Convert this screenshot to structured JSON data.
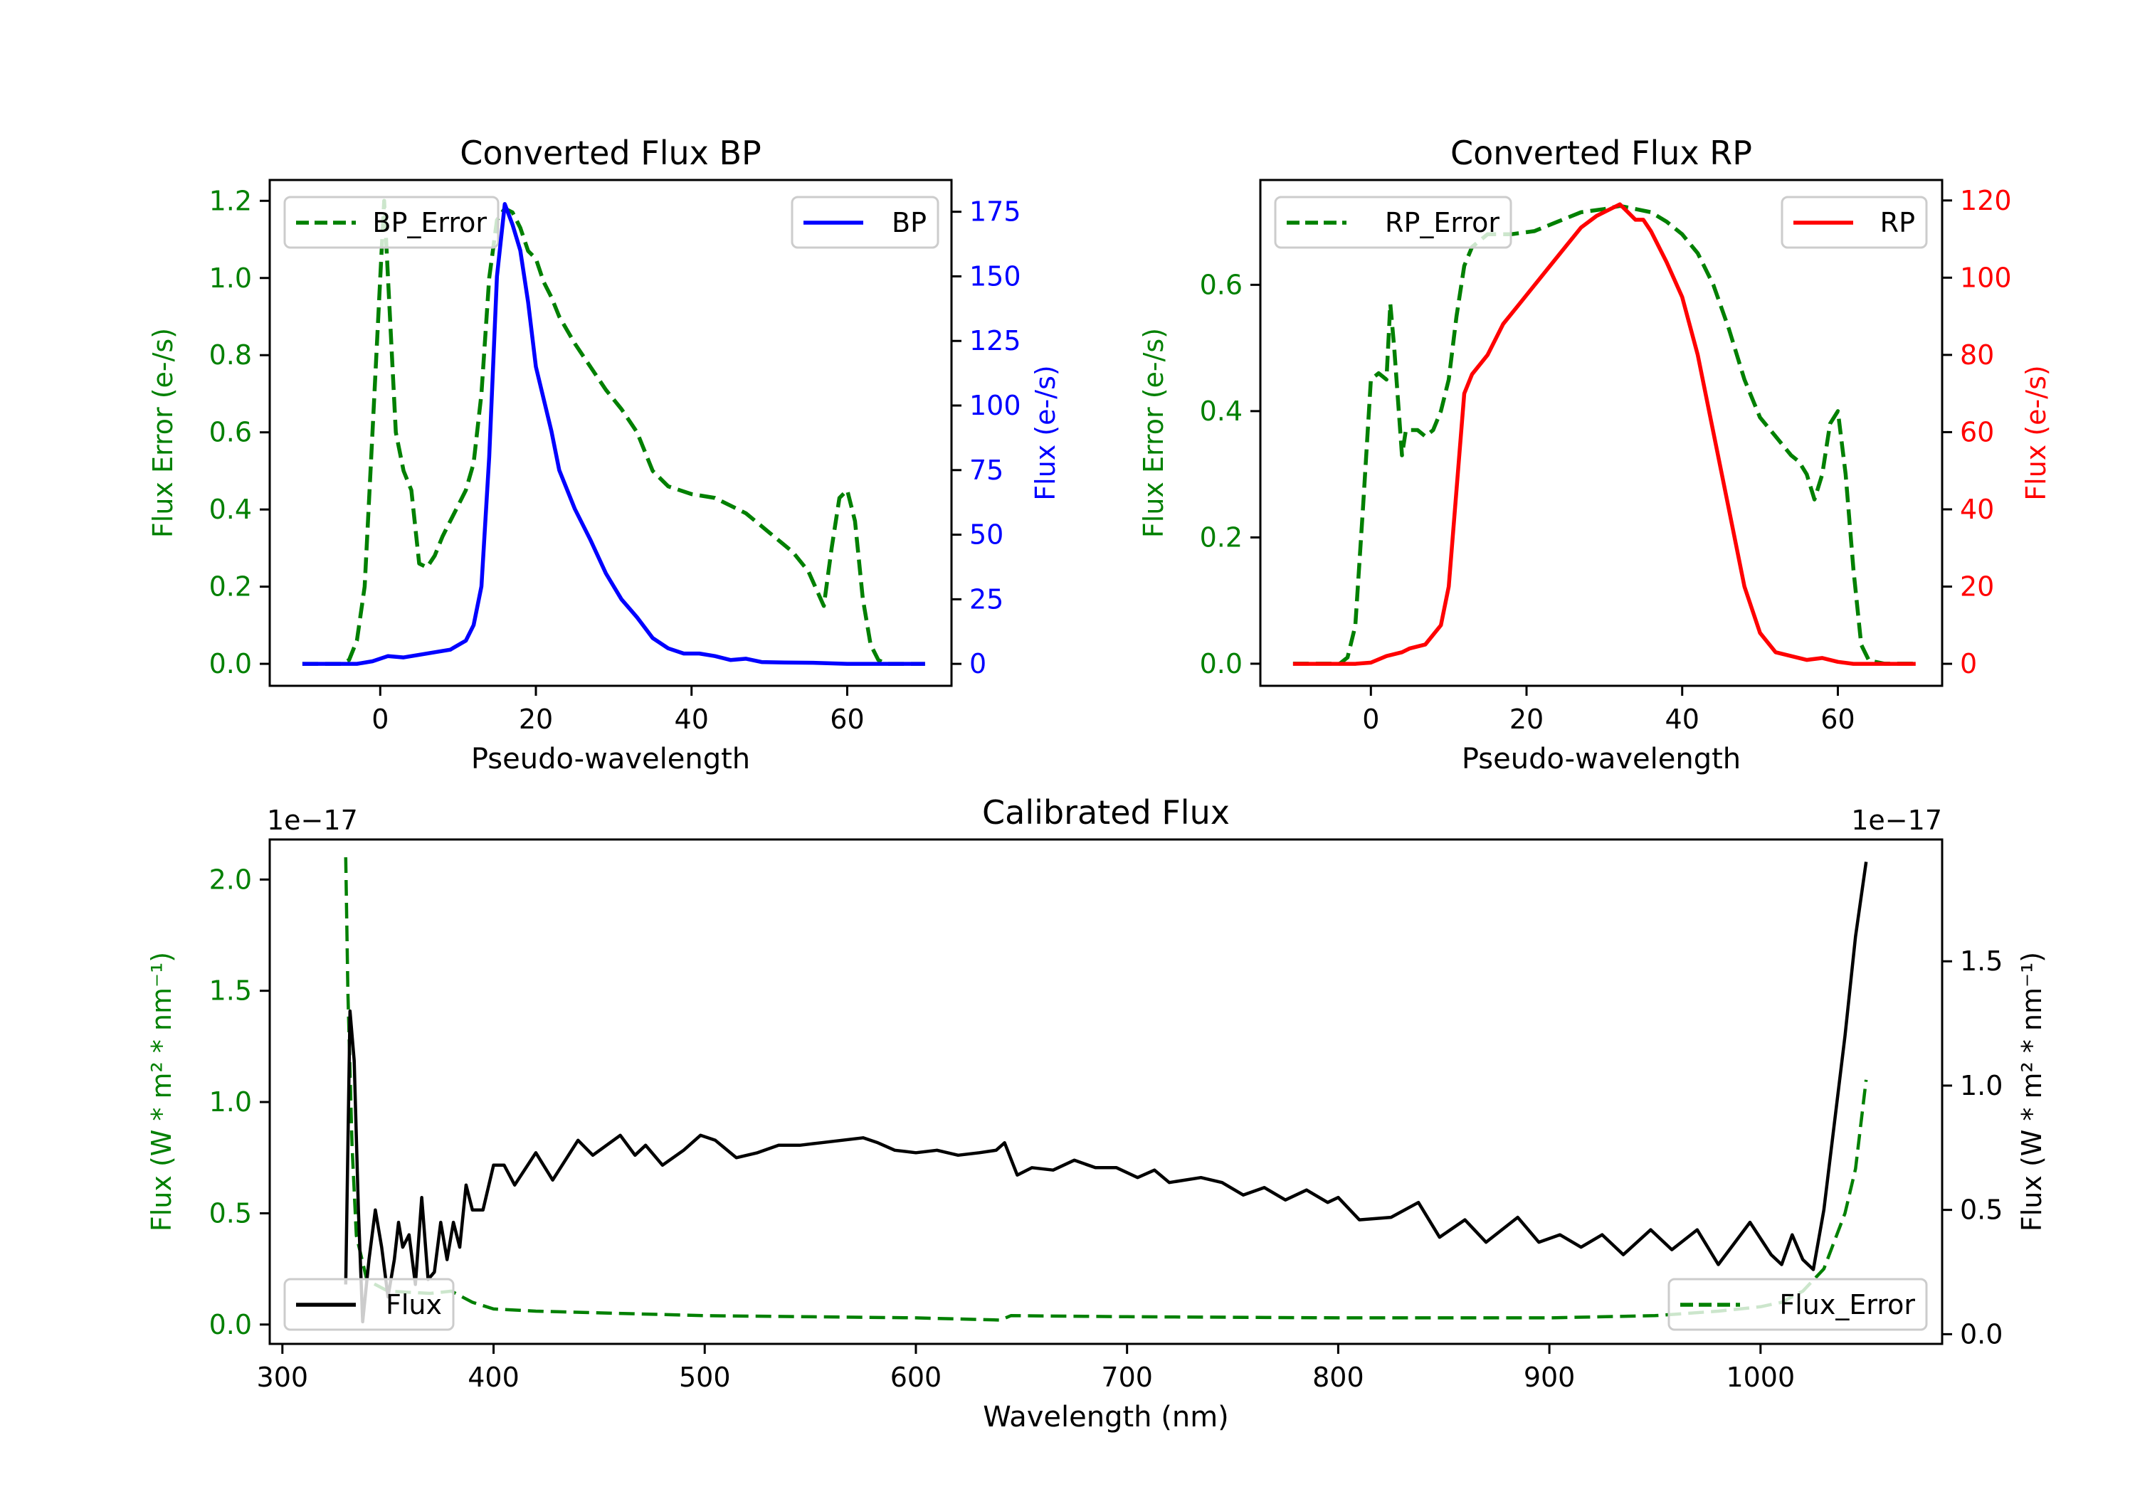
{
  "chart_data": [
    {
      "type": "line",
      "title": "Converted Flux BP",
      "xlabel": "Pseudo-wavelength",
      "ylabel_left": "Flux Error (e-/s)",
      "ylabel_right": "Flux (e-/s)",
      "color_left": "#008000",
      "color_right": "#0000ff",
      "xlim": [
        -14.2,
        73.4
      ],
      "ylim_left": [
        -0.057,
        1.254
      ],
      "ylim_right": [
        -8.5,
        187.3
      ],
      "xticks": [
        {
          "v": 0,
          "label": "0"
        },
        {
          "v": 20,
          "label": "20"
        },
        {
          "v": 40,
          "label": "40"
        },
        {
          "v": 60,
          "label": "60"
        }
      ],
      "yticks_left": [
        {
          "v": 0,
          "label": "0.0"
        },
        {
          "v": 0.2,
          "label": "0.2"
        },
        {
          "v": 0.4,
          "label": "0.4"
        },
        {
          "v": 0.6,
          "label": "0.6"
        },
        {
          "v": 0.8,
          "label": "0.8"
        },
        {
          "v": 1.0,
          "label": "1.0"
        },
        {
          "v": 1.2,
          "label": "1.2"
        }
      ],
      "yticks_right": [
        {
          "v": 0,
          "label": "0"
        },
        {
          "v": 25,
          "label": "25"
        },
        {
          "v": 50,
          "label": "50"
        },
        {
          "v": 75,
          "label": "75"
        },
        {
          "v": 100,
          "label": "100"
        },
        {
          "v": 125,
          "label": "125"
        },
        {
          "v": 150,
          "label": "150"
        },
        {
          "v": 175,
          "label": "175"
        }
      ],
      "offset_left": "",
      "offset_right": "",
      "grid": false,
      "series": [
        {
          "name": "BP_Error",
          "axis": "left",
          "color": "#008000",
          "style": "dashed",
          "legend_loc": "upper left",
          "x": [
            -10,
            -5,
            -4,
            -3,
            -2,
            -1,
            0,
            0.5,
            1,
            2,
            3,
            4,
            5,
            6,
            7,
            8,
            9,
            10,
            11,
            12,
            13,
            14,
            15,
            16,
            17,
            18,
            19,
            20,
            21,
            22,
            23,
            25,
            27,
            29,
            31,
            33,
            35,
            37,
            40,
            43,
            45,
            47,
            50,
            53,
            55,
            57,
            58,
            59,
            60,
            61,
            62,
            63,
            64,
            65,
            70
          ],
          "y": [
            0,
            0,
            0.01,
            0.06,
            0.2,
            0.6,
            1.0,
            1.2,
            1.0,
            0.6,
            0.5,
            0.45,
            0.26,
            0.25,
            0.28,
            0.33,
            0.37,
            0.41,
            0.45,
            0.52,
            0.7,
            1.0,
            1.15,
            1.18,
            1.17,
            1.13,
            1.07,
            1.05,
            0.99,
            0.95,
            0.9,
            0.83,
            0.77,
            0.71,
            0.66,
            0.6,
            0.5,
            0.46,
            0.44,
            0.43,
            0.41,
            0.39,
            0.34,
            0.29,
            0.24,
            0.15,
            0.3,
            0.43,
            0.45,
            0.37,
            0.17,
            0.05,
            0.01,
            0,
            0
          ]
        },
        {
          "name": "BP",
          "axis": "right",
          "color": "#0000ff",
          "style": "solid",
          "legend_loc": "upper right",
          "x": [
            -10,
            -5,
            -3,
            -1,
            1,
            3,
            5,
            7,
            9,
            11,
            12,
            13,
            14,
            15,
            16,
            17,
            18,
            19,
            20,
            22,
            23,
            25,
            27,
            29,
            31,
            33,
            35,
            37,
            39,
            41,
            43,
            45,
            47,
            49,
            52,
            56,
            60,
            65,
            70
          ],
          "y": [
            0,
            0,
            0,
            1,
            3,
            2.5,
            3.5,
            4.5,
            5.5,
            9,
            15,
            30,
            80,
            150,
            178,
            170,
            160,
            140,
            115,
            90,
            75,
            60,
            48,
            35,
            25,
            18,
            10,
            6,
            4,
            4,
            3,
            1.5,
            2,
            0.7,
            0.5,
            0.4,
            0,
            0,
            0
          ]
        }
      ]
    },
    {
      "type": "line",
      "title": "Converted Flux RP",
      "xlabel": "Pseudo-wavelength",
      "ylabel_left": "Flux Error (e-/s)",
      "ylabel_right": "Flux (e-/s)",
      "color_left": "#008000",
      "color_right": "#ff0000",
      "xlim": [
        -14.2,
        73.4
      ],
      "ylim_left": [
        -0.035,
        0.766
      ],
      "ylim_right": [
        -5.7,
        125.3
      ],
      "xticks": [
        {
          "v": 0,
          "label": "0"
        },
        {
          "v": 20,
          "label": "20"
        },
        {
          "v": 40,
          "label": "40"
        },
        {
          "v": 60,
          "label": "60"
        }
      ],
      "yticks_left": [
        {
          "v": 0,
          "label": "0.0"
        },
        {
          "v": 0.2,
          "label": "0.2"
        },
        {
          "v": 0.4,
          "label": "0.4"
        },
        {
          "v": 0.6,
          "label": "0.6"
        }
      ],
      "yticks_right": [
        {
          "v": 0,
          "label": "0"
        },
        {
          "v": 20,
          "label": "20"
        },
        {
          "v": 40,
          "label": "40"
        },
        {
          "v": 60,
          "label": "60"
        },
        {
          "v": 80,
          "label": "80"
        },
        {
          "v": 100,
          "label": "100"
        },
        {
          "v": 120,
          "label": "120"
        }
      ],
      "offset_left": "",
      "offset_right": "",
      "grid": false,
      "series": [
        {
          "name": "RP_Error",
          "axis": "left",
          "color": "#008000",
          "style": "dashed",
          "legend_loc": "upper left",
          "x": [
            -10,
            -4,
            -3,
            -2,
            -1,
            0,
            1,
            2,
            2.5,
            3,
            4,
            4.5,
            5,
            6,
            7,
            8,
            9,
            10,
            11,
            12,
            13,
            15,
            18,
            21,
            24,
            27,
            30,
            32,
            34,
            36,
            38,
            40,
            42,
            44,
            46,
            48,
            50,
            52,
            54,
            55,
            56,
            57,
            58,
            59,
            60,
            61,
            62,
            63,
            64,
            66,
            70
          ],
          "y": [
            0,
            0,
            0.01,
            0.06,
            0.25,
            0.45,
            0.46,
            0.45,
            0.57,
            0.5,
            0.33,
            0.37,
            0.37,
            0.37,
            0.36,
            0.37,
            0.4,
            0.45,
            0.55,
            0.63,
            0.66,
            0.68,
            0.68,
            0.685,
            0.7,
            0.715,
            0.72,
            0.725,
            0.72,
            0.715,
            0.7,
            0.68,
            0.65,
            0.6,
            0.53,
            0.45,
            0.39,
            0.36,
            0.33,
            0.32,
            0.3,
            0.26,
            0.3,
            0.38,
            0.4,
            0.3,
            0.15,
            0.03,
            0.005,
            0,
            0
          ]
        },
        {
          "name": "RP",
          "axis": "right",
          "color": "#ff0000",
          "style": "solid",
          "legend_loc": "upper right",
          "x": [
            -10,
            -2,
            0,
            2,
            4,
            5,
            7,
            9,
            10,
            11,
            12,
            13,
            15,
            17,
            19,
            21,
            23,
            25,
            27,
            29,
            31,
            32,
            33,
            34,
            35,
            36,
            38,
            40,
            42,
            44,
            46,
            48,
            50,
            52,
            54,
            56,
            58,
            60,
            62,
            70
          ],
          "y": [
            0,
            0,
            0.3,
            2,
            3,
            4,
            5,
            10,
            20,
            45,
            70,
            75,
            80,
            88,
            93,
            98,
            103,
            108,
            113,
            116,
            118,
            119,
            117,
            115,
            115,
            112,
            104,
            95,
            80,
            60,
            40,
            20,
            8,
            3,
            2,
            1,
            1.5,
            0.5,
            0,
            0
          ]
        }
      ]
    },
    {
      "type": "line",
      "title": "Calibrated Flux",
      "xlabel": "Wavelength (nm)",
      "ylabel_left": "Flux (W * m² * nm⁻¹)",
      "ylabel_right": "Flux (W * m² * nm⁻¹)",
      "color_left": "#008000",
      "color_right": "#000000",
      "xlim": [
        294,
        1086
      ],
      "ylim_left": [
        -0.087,
        2.18
      ],
      "ylim_right": [
        -0.039,
        1.99
      ],
      "xticks": [
        {
          "v": 300,
          "label": "300"
        },
        {
          "v": 400,
          "label": "400"
        },
        {
          "v": 500,
          "label": "500"
        },
        {
          "v": 600,
          "label": "600"
        },
        {
          "v": 700,
          "label": "700"
        },
        {
          "v": 800,
          "label": "800"
        },
        {
          "v": 900,
          "label": "900"
        },
        {
          "v": 1000,
          "label": "1000"
        }
      ],
      "yticks_left": [
        {
          "v": 0,
          "label": "0.0"
        },
        {
          "v": 0.5,
          "label": "0.5"
        },
        {
          "v": 1.0,
          "label": "1.0"
        },
        {
          "v": 1.5,
          "label": "1.5"
        },
        {
          "v": 2.0,
          "label": "2.0"
        }
      ],
      "yticks_right": [
        {
          "v": 0,
          "label": "0.0"
        },
        {
          "v": 0.5,
          "label": "0.5"
        },
        {
          "v": 1.0,
          "label": "1.0"
        },
        {
          "v": 1.5,
          "label": "1.5"
        }
      ],
      "offset_left": "1e−17",
      "offset_right": "1e−17",
      "grid": false,
      "series": [
        {
          "name": "Flux_Error",
          "axis": "left",
          "color": "#008000",
          "style": "dashed",
          "legend_loc": "lower right",
          "x": [
            330,
            331,
            333,
            335,
            340,
            350,
            370,
            380,
            390,
            400,
            420,
            500,
            600,
            640,
            645,
            700,
            800,
            900,
            950,
            980,
            1000,
            1010,
            1020,
            1030,
            1040,
            1045,
            1050
          ],
          "y": [
            2.1,
            1.5,
            0.8,
            0.4,
            0.2,
            0.15,
            0.14,
            0.15,
            0.1,
            0.07,
            0.06,
            0.04,
            0.03,
            0.02,
            0.04,
            0.035,
            0.03,
            0.03,
            0.04,
            0.06,
            0.08,
            0.1,
            0.15,
            0.25,
            0.5,
            0.7,
            1.1
          ]
        },
        {
          "name": "Flux",
          "axis": "right",
          "color": "#000000",
          "style": "solid",
          "legend_loc": "lower left",
          "x": [
            330,
            332,
            334,
            336,
            338,
            341,
            344,
            347,
            350,
            353,
            355,
            357,
            360,
            363,
            366,
            369,
            372,
            375,
            378,
            381,
            384,
            387,
            390,
            395,
            400,
            405,
            410,
            420,
            428,
            440,
            447,
            460,
            467,
            472,
            480,
            490,
            498,
            505,
            515,
            525,
            535,
            545,
            555,
            565,
            575,
            582,
            590,
            600,
            610,
            620,
            630,
            638,
            642,
            648,
            655,
            665,
            675,
            685,
            695,
            705,
            713,
            720,
            735,
            745,
            755,
            765,
            775,
            785,
            795,
            800,
            810,
            825,
            838,
            848,
            860,
            870,
            885,
            895,
            905,
            915,
            925,
            935,
            948,
            958,
            970,
            980,
            995,
            1005,
            1010,
            1015,
            1020,
            1025,
            1030,
            1040,
            1045,
            1050
          ],
          "y": [
            0.2,
            1.3,
            1.1,
            0.5,
            0.05,
            0.3,
            0.5,
            0.35,
            0.15,
            0.3,
            0.45,
            0.35,
            0.4,
            0.2,
            0.55,
            0.22,
            0.25,
            0.45,
            0.3,
            0.45,
            0.35,
            0.6,
            0.5,
            0.5,
            0.68,
            0.68,
            0.6,
            0.73,
            0.62,
            0.78,
            0.72,
            0.8,
            0.72,
            0.76,
            0.68,
            0.74,
            0.8,
            0.78,
            0.71,
            0.73,
            0.76,
            0.76,
            0.77,
            0.78,
            0.79,
            0.77,
            0.74,
            0.73,
            0.74,
            0.72,
            0.73,
            0.74,
            0.77,
            0.64,
            0.67,
            0.66,
            0.7,
            0.67,
            0.67,
            0.63,
            0.66,
            0.61,
            0.63,
            0.61,
            0.56,
            0.59,
            0.54,
            0.58,
            0.53,
            0.55,
            0.46,
            0.47,
            0.53,
            0.39,
            0.46,
            0.37,
            0.47,
            0.37,
            0.4,
            0.35,
            0.4,
            0.32,
            0.42,
            0.34,
            0.42,
            0.28,
            0.45,
            0.32,
            0.28,
            0.4,
            0.3,
            0.26,
            0.5,
            1.2,
            1.6,
            1.9
          ]
        }
      ]
    }
  ]
}
